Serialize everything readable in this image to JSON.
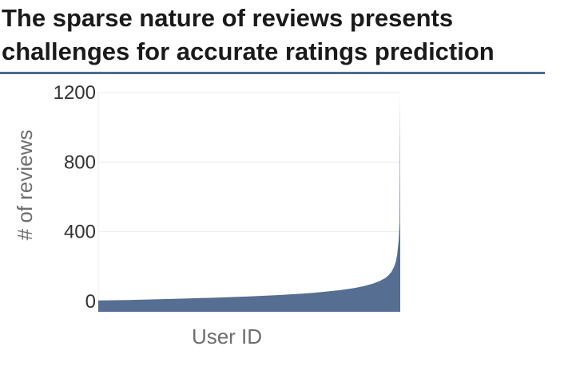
{
  "title": "The sparse nature of reviews presents challenges for accurate ratings prediction",
  "colors": {
    "area": "#566e91",
    "rule": "#4a6a95",
    "grid": "#ececec"
  },
  "chart_data": {
    "type": "area",
    "title": "The sparse nature of reviews presents challenges for accurate ratings prediction",
    "xlabel": "User ID",
    "ylabel": "# of reviews",
    "ylim": [
      -60,
      1200
    ],
    "xlim": [
      0,
      1
    ],
    "yticks": [
      0,
      400,
      800,
      1200
    ],
    "grid": true,
    "legend": "none",
    "x": [
      0,
      0.1,
      0.2,
      0.3,
      0.4,
      0.5,
      0.6,
      0.7,
      0.75,
      0.8,
      0.85,
      0.88,
      0.91,
      0.93,
      0.95,
      0.96,
      0.97,
      0.98,
      0.985,
      0.99,
      0.995,
      0.998,
      1.0
    ],
    "y": [
      5,
      8,
      12,
      17,
      22,
      28,
      36,
      47,
      55,
      64,
      77,
      88,
      102,
      115,
      133,
      148,
      167,
      200,
      225,
      270,
      350,
      450,
      1200
    ]
  }
}
